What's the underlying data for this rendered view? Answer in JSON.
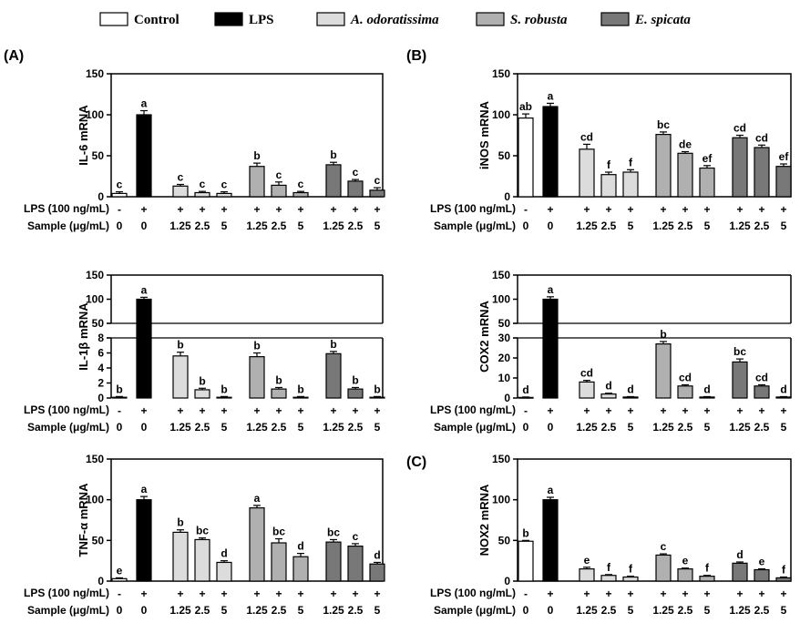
{
  "legend": {
    "entries": [
      {
        "label": "Control",
        "fill": "#ffffff",
        "italic": false
      },
      {
        "label": "LPS",
        "fill": "#000000",
        "italic": false
      },
      {
        "label": "A. odoratissima",
        "fill": "#dcdcdc",
        "italic": true
      },
      {
        "label": "S. robusta",
        "fill": "#b0b0b0",
        "italic": true
      },
      {
        "label": "E. spicata",
        "fill": "#787878",
        "italic": true
      }
    ]
  },
  "colors": {
    "control": "#ffffff",
    "lps": "#000000",
    "a_odoratissima": "#dcdcdc",
    "s_robusta": "#b0b0b0",
    "e_spicata": "#787878"
  },
  "conditions": {
    "lps_label": "LPS (100 ng/mL)",
    "sample_label": "Sample (μg/mL)",
    "lps_row": [
      "-",
      "+",
      "+",
      "+",
      "+",
      "+",
      "+",
      "+",
      "+",
      "+",
      "+"
    ],
    "sample_row": [
      "0",
      "0",
      "1.25",
      "2.5",
      "5",
      "1.25",
      "2.5",
      "5",
      "1.25",
      "2.5",
      "5"
    ]
  },
  "chart_data": [
    {
      "type": "bar",
      "panel_label": "(A)",
      "ylabel": "IL-6 mRNA",
      "ylim": [
        0,
        150
      ],
      "yticks": [
        0,
        50,
        100,
        150
      ],
      "categories": [
        "Control",
        "LPS",
        "A. odoratissima 1.25",
        "A. odoratissima 2.5",
        "A. odoratissima 5",
        "S. robusta 1.25",
        "S. robusta 2.5",
        "S. robusta 5",
        "E. spicata 1.25",
        "E. spicata 2.5",
        "E. spicata 5"
      ],
      "values": [
        4,
        100,
        13,
        5,
        4,
        37,
        14,
        5,
        39,
        19,
        8
      ],
      "errors": [
        2,
        5,
        2,
        1.5,
        2,
        4,
        4,
        1.5,
        3,
        2,
        3
      ],
      "letters": [
        "c",
        "a",
        "c",
        "c",
        "c",
        "b",
        "c",
        "c",
        "b",
        "c",
        "c"
      ]
    },
    {
      "type": "bar",
      "panel_label": "(B)",
      "ylabel": "iNOS mRNA",
      "ylim": [
        0,
        150
      ],
      "yticks": [
        0,
        50,
        100,
        150
      ],
      "categories": [
        "Control",
        "LPS",
        "A. odoratissima 1.25",
        "A. odoratissima 2.5",
        "A. odoratissima 5",
        "S. robusta 1.25",
        "S. robusta 2.5",
        "S. robusta 5",
        "E. spicata 1.25",
        "E. spicata 2.5",
        "E. spicata 5"
      ],
      "values": [
        96,
        110,
        58,
        27,
        30,
        76,
        53,
        35,
        72,
        60,
        37
      ],
      "errors": [
        5,
        4,
        6,
        3,
        3,
        3,
        2,
        3,
        3,
        3,
        3
      ],
      "letters": [
        "ab",
        "a",
        "cd",
        "f",
        "f",
        "bc",
        "de",
        "ef",
        "cd",
        "cd",
        "ef"
      ]
    },
    {
      "type": "bar",
      "ylabel": "IL-1β mRNA",
      "axis_break": true,
      "lower_ylim": [
        0,
        8
      ],
      "lower_yticks": [
        0,
        2,
        4,
        6,
        8
      ],
      "upper_ylim": [
        50,
        150
      ],
      "upper_yticks": [
        50,
        100,
        150
      ],
      "categories": [
        "Control",
        "LPS",
        "A. odoratissima 1.25",
        "A. odoratissima 2.5",
        "A. odoratissima 5",
        "S. robusta 1.25",
        "S. robusta 2.5",
        "S. robusta 5",
        "E. spicata 1.25",
        "E. spicata 2.5",
        "E. spicata 5"
      ],
      "values": [
        0.1,
        100,
        5.6,
        1.1,
        0.1,
        5.5,
        1.2,
        0.1,
        5.9,
        1.2,
        0.1
      ],
      "errors": [
        0.1,
        4,
        0.5,
        0.2,
        0.1,
        0.5,
        0.2,
        0.1,
        0.3,
        0.2,
        0.1
      ],
      "letters": [
        "b",
        "a",
        "b",
        "b",
        "b",
        "b",
        "b",
        "b",
        "b",
        "b",
        "b"
      ]
    },
    {
      "type": "bar",
      "ylabel": "COX2 mRNA",
      "axis_break": true,
      "lower_ylim": [
        0,
        30
      ],
      "lower_yticks": [
        0,
        10,
        20,
        30
      ],
      "upper_ylim": [
        50,
        150
      ],
      "upper_yticks": [
        50,
        100,
        150
      ],
      "categories": [
        "Control",
        "LPS",
        "A. odoratissima 1.25",
        "A. odoratissima 2.5",
        "A. odoratissima 5",
        "S. robusta 1.25",
        "S. robusta 2.5",
        "S. robusta 5",
        "E. spicata 1.25",
        "E. spicata 2.5",
        "E. spicata 5"
      ],
      "values": [
        0.3,
        100,
        8,
        2,
        0.5,
        27,
        6,
        0.5,
        18,
        6,
        0.5
      ],
      "errors": [
        0.2,
        5,
        0.8,
        0.4,
        0.2,
        1.2,
        0.6,
        0.2,
        1.5,
        0.6,
        0.2
      ],
      "letters": [
        "d",
        "a",
        "cd",
        "d",
        "d",
        "b",
        "cd",
        "d",
        "bc",
        "cd",
        "d"
      ]
    },
    {
      "type": "bar",
      "ylabel": "TNF-α mRNA",
      "ylim": [
        0,
        150
      ],
      "yticks": [
        0,
        50,
        100,
        150
      ],
      "categories": [
        "Control",
        "LPS",
        "A. odoratissima 1.25",
        "A. odoratissima 2.5",
        "A. odoratissima 5",
        "S. robusta 1.25",
        "S. robusta 2.5",
        "S. robusta 5",
        "E. spicata 1.25",
        "E. spicata 2.5",
        "E. spicata 5"
      ],
      "values": [
        3,
        100,
        60,
        51,
        23,
        90,
        47,
        30,
        48,
        43,
        21
      ],
      "errors": [
        1,
        4,
        3,
        2,
        2,
        3,
        5,
        4,
        3,
        3,
        2
      ],
      "letters": [
        "e",
        "a",
        "b",
        "bc",
        "d",
        "a",
        "bc",
        "d",
        "bc",
        "c",
        "d"
      ]
    },
    {
      "type": "bar",
      "panel_label": "(C)",
      "ylabel": "NOX2 mRNA",
      "ylim": [
        0,
        150
      ],
      "yticks": [
        0,
        50,
        100,
        150
      ],
      "categories": [
        "Control",
        "LPS",
        "A. odoratissima 1.25",
        "A. odoratissima 2.5",
        "A. odoratissima 5",
        "S. robusta 1.25",
        "S. robusta 2.5",
        "S. robusta 5",
        "E. spicata 1.25",
        "E. spicata 2.5",
        "E. spicata 5"
      ],
      "values": [
        49,
        100,
        15,
        7,
        5,
        32,
        15,
        6,
        22,
        14,
        4
      ],
      "errors": [
        1,
        3,
        2,
        1,
        1,
        1.5,
        1,
        1,
        1.5,
        1,
        1
      ],
      "letters": [
        "b",
        "a",
        "e",
        "f",
        "f",
        "c",
        "e",
        "f",
        "d",
        "e",
        "f"
      ]
    }
  ]
}
